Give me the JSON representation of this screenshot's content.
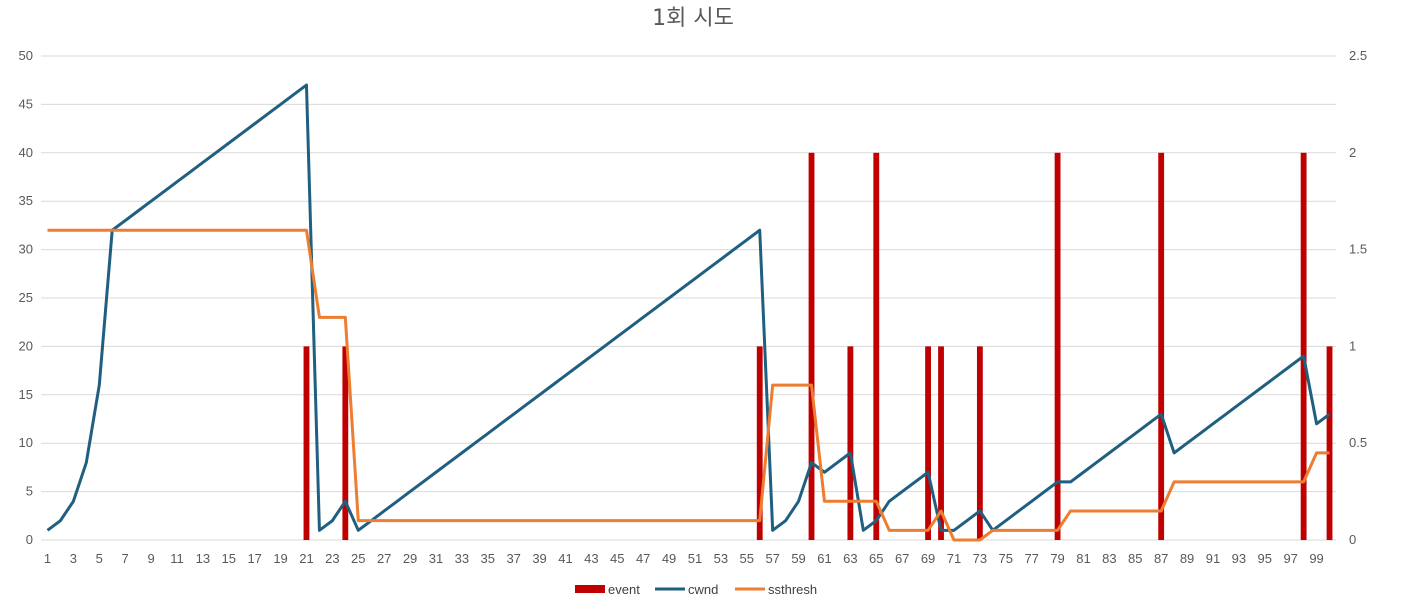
{
  "chart_data": {
    "type": "line",
    "title": "1회 시도",
    "x": [
      1,
      2,
      3,
      4,
      5,
      6,
      7,
      8,
      9,
      10,
      11,
      12,
      13,
      14,
      15,
      16,
      17,
      18,
      19,
      20,
      21,
      22,
      23,
      24,
      25,
      26,
      27,
      28,
      29,
      30,
      31,
      32,
      33,
      34,
      35,
      36,
      37,
      38,
      39,
      40,
      41,
      42,
      43,
      44,
      45,
      46,
      47,
      48,
      49,
      50,
      51,
      52,
      53,
      54,
      55,
      56,
      57,
      58,
      59,
      60,
      61,
      62,
      63,
      64,
      65,
      66,
      67,
      68,
      69,
      70,
      71,
      72,
      73,
      74,
      75,
      76,
      77,
      78,
      79,
      80,
      81,
      82,
      83,
      84,
      85,
      86,
      87,
      88,
      89,
      90,
      91,
      92,
      93,
      94,
      95,
      96,
      97,
      98,
      99,
      100
    ],
    "x_tick_labels": [
      "1",
      "3",
      "5",
      "7",
      "9",
      "11",
      "13",
      "15",
      "17",
      "19",
      "21",
      "23",
      "25",
      "27",
      "29",
      "31",
      "33",
      "35",
      "37",
      "39",
      "41",
      "43",
      "45",
      "47",
      "49",
      "51",
      "53",
      "55",
      "57",
      "59",
      "61",
      "63",
      "65",
      "67",
      "69",
      "71",
      "73",
      "75",
      "77",
      "79",
      "81",
      "83",
      "85",
      "87",
      "89",
      "91",
      "93",
      "95",
      "97",
      "99"
    ],
    "y_left": {
      "min": 0,
      "max": 50,
      "ticks": [
        "0",
        "5",
        "10",
        "15",
        "20",
        "25",
        "30",
        "35",
        "40",
        "45",
        "50"
      ]
    },
    "y_right": {
      "min": 0,
      "max": 2.5,
      "ticks": [
        "0",
        "0.5",
        "1",
        "1.5",
        "2",
        "2.5"
      ]
    },
    "grid": true,
    "legend_position": "bottom",
    "series": [
      {
        "name": "event",
        "kind": "bar",
        "axis": "right",
        "color": "#c00000",
        "points": [
          [
            21,
            1
          ],
          [
            24,
            1
          ],
          [
            56,
            1
          ],
          [
            60,
            2
          ],
          [
            63,
            1
          ],
          [
            65,
            2
          ],
          [
            69,
            1
          ],
          [
            70,
            1
          ],
          [
            73,
            1
          ],
          [
            79,
            2
          ],
          [
            87,
            2
          ],
          [
            98,
            2
          ],
          [
            100,
            1
          ]
        ]
      },
      {
        "name": "cwnd",
        "kind": "line",
        "axis": "left",
        "color": "#1f5f80",
        "values": [
          1,
          2,
          4,
          8,
          16,
          32,
          33,
          34,
          35,
          36,
          37,
          38,
          39,
          40,
          41,
          42,
          43,
          44,
          45,
          46,
          47,
          1,
          2,
          4,
          1,
          2,
          3,
          4,
          5,
          6,
          7,
          8,
          9,
          10,
          11,
          12,
          13,
          14,
          15,
          16,
          17,
          18,
          19,
          20,
          21,
          22,
          23,
          24,
          25,
          26,
          27,
          28,
          29,
          30,
          31,
          32,
          1,
          2,
          4,
          8,
          7,
          8,
          9,
          1,
          2,
          4,
          5,
          6,
          7,
          1,
          1,
          2,
          3,
          1,
          2,
          3,
          4,
          5,
          6,
          6,
          7,
          8,
          9,
          10,
          11,
          12,
          13,
          9,
          10,
          11,
          12,
          13,
          14,
          15,
          16,
          17,
          18,
          19,
          12,
          13
        ]
      },
      {
        "name": "ssthresh",
        "kind": "line",
        "axis": "left",
        "color": "#ed7d31",
        "values": [
          32,
          32,
          32,
          32,
          32,
          32,
          32,
          32,
          32,
          32,
          32,
          32,
          32,
          32,
          32,
          32,
          32,
          32,
          32,
          32,
          32,
          23,
          23,
          23,
          2,
          2,
          2,
          2,
          2,
          2,
          2,
          2,
          2,
          2,
          2,
          2,
          2,
          2,
          2,
          2,
          2,
          2,
          2,
          2,
          2,
          2,
          2,
          2,
          2,
          2,
          2,
          2,
          2,
          2,
          2,
          2,
          16,
          16,
          16,
          16,
          4,
          4,
          4,
          4,
          4,
          1,
          1,
          1,
          1,
          3,
          0,
          0,
          0,
          1,
          1,
          1,
          1,
          1,
          1,
          3,
          3,
          3,
          3,
          3,
          3,
          3,
          3,
          6,
          6,
          6,
          6,
          6,
          6,
          6,
          6,
          6,
          6,
          6,
          9,
          9
        ]
      }
    ]
  }
}
